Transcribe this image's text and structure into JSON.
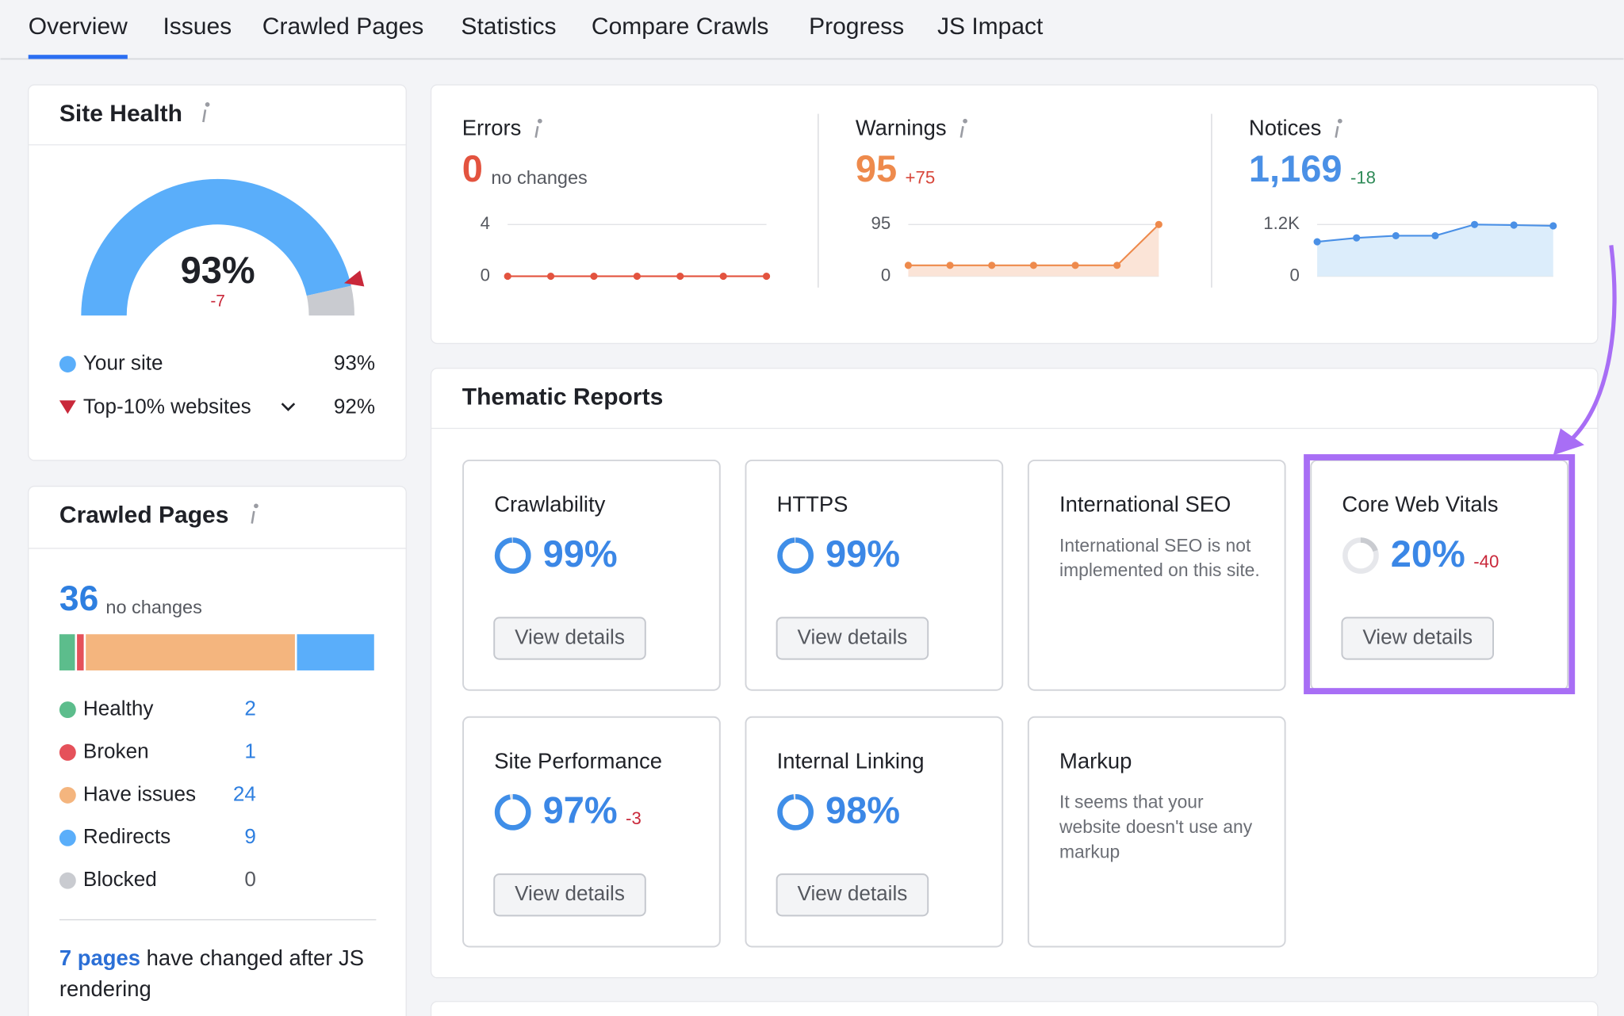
{
  "nav": {
    "tabs": [
      "Overview",
      "Issues",
      "Crawled Pages",
      "Statistics",
      "Compare Crawls",
      "Progress",
      "JS Impact"
    ],
    "active": 0
  },
  "site_health": {
    "title": "Site Health",
    "score": 93,
    "score_label": "93%",
    "change": "-7",
    "legend": [
      {
        "name": "Your site",
        "value": 93,
        "value_label": "93%",
        "color": "#5aaefa"
      },
      {
        "name": "Top-10% websites",
        "value": 92,
        "value_label": "92%",
        "color": "#c9283a"
      }
    ]
  },
  "crawled_pages": {
    "title": "Crawled Pages",
    "total": 36,
    "change": "no changes",
    "groups": [
      {
        "name": "Healthy",
        "count": 2,
        "color": "#5cbd8c"
      },
      {
        "name": "Broken",
        "count": 1,
        "color": "#e5515a"
      },
      {
        "name": "Have issues",
        "count": 24,
        "color": "#f4b57e"
      },
      {
        "name": "Redirects",
        "count": 9,
        "color": "#5aaefa"
      },
      {
        "name": "Blocked",
        "count": 0,
        "color": "#c9cbd0"
      }
    ],
    "js_note": {
      "link": "7 pages",
      "text": "have changed after JS rendering"
    }
  },
  "issues": [
    {
      "title": "Errors",
      "value": 0,
      "change": "no changes",
      "color": "#e3533f",
      "values": [
        0,
        0,
        0,
        0,
        0,
        0,
        0
      ],
      "ylim": [
        0,
        4
      ],
      "yticks": [
        0,
        4
      ]
    },
    {
      "title": "Warnings",
      "value": 95,
      "change": "+75",
      "color": "#ee8a4c",
      "fill": "#fbe4d7",
      "values": [
        20,
        20,
        20,
        20,
        20,
        20,
        95
      ],
      "ylim": [
        0,
        95
      ],
      "yticks": [
        0,
        95
      ]
    },
    {
      "title": "Notices",
      "value": 1169,
      "value_label": "1,169",
      "change": "-18",
      "color": "#4a90e6",
      "fill": "#dcedfb",
      "values": [
        800,
        890,
        940,
        940,
        1200,
        1187,
        1169
      ],
      "ylim": [
        0,
        1200
      ],
      "yticks": [
        0,
        {
          "value": 1200,
          "label": "1.2K"
        }
      ]
    }
  ],
  "thematic_reports": {
    "title": "Thematic Reports",
    "button": "View details",
    "tiles": [
      {
        "title": "Crawlability",
        "score": 99,
        "score_label": "99%"
      },
      {
        "title": "HTTPS",
        "score": 99,
        "score_label": "99%"
      },
      {
        "title": "International SEO",
        "description": "International SEO is not implemented on this site."
      },
      {
        "title": "Core Web Vitals",
        "score": 20,
        "score_label": "20%",
        "change": "-40",
        "highlighted": true
      },
      {
        "title": "Site Performance",
        "score": 97,
        "score_label": "97%",
        "change": "-3"
      },
      {
        "title": "Internal Linking",
        "score": 98,
        "score_label": "98%"
      },
      {
        "title": "Markup",
        "description": "It seems that your website doesn't use any markup"
      }
    ]
  }
}
